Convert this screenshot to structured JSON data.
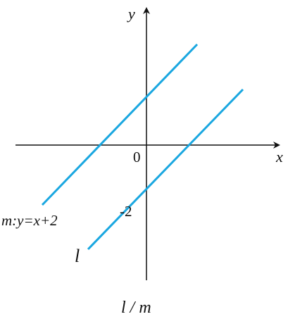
{
  "axes": {
    "x_label": "x",
    "y_label": "y",
    "origin_label": "0",
    "tick_label": "-2"
  },
  "lines": [
    {
      "label": "m:y=x+2"
    },
    {
      "label": "l"
    }
  ],
  "caption": "l / m"
}
